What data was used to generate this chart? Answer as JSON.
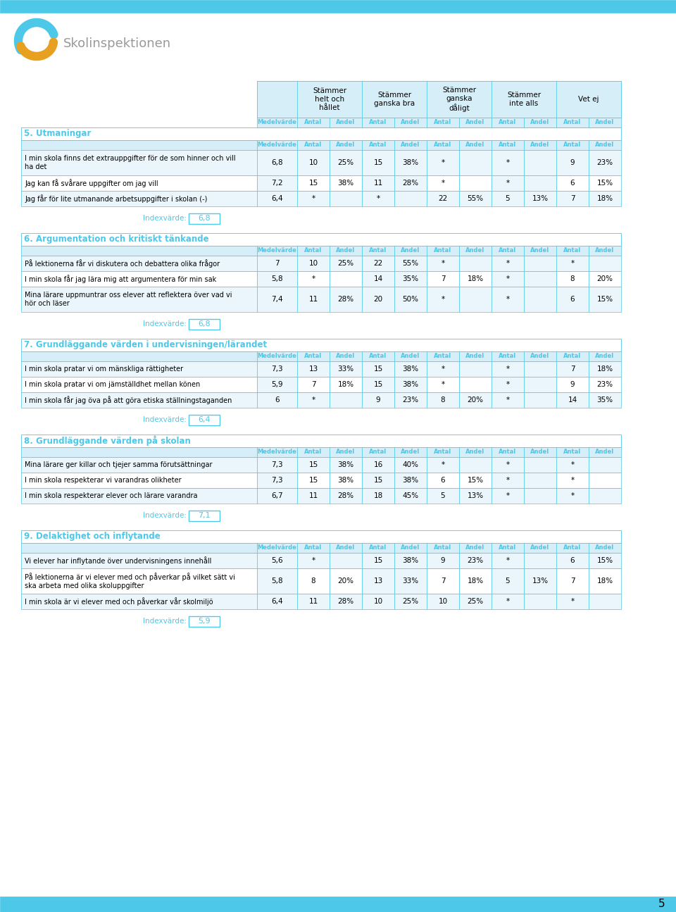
{
  "page_number": "5",
  "cyan": "#4DC8E8",
  "gold": "#E8A020",
  "col_header_bg": "#D6EEF8",
  "section_title_color": "#4DC8E8",
  "row_alt_bg": "#EBF6FC",
  "row_bg": "#FFFFFF",
  "index_box_color": "#4DC8E8",
  "index_text_color": "#4DC8E8",
  "gray_text": "#888888",
  "col_headers_top": [
    "Stämmer\nhelt och\nhållet",
    "Stämmer\nganska bra",
    "Stämmer\nganska\ndåligt",
    "Stämmer\ninte alls",
    "Vet ej"
  ],
  "col_sub_headers": [
    "Medelvärde",
    "Antal",
    "Andel",
    "Antal",
    "Andel",
    "Antal",
    "Andel",
    "Antal",
    "Andel",
    "Antal",
    "Andel"
  ],
  "sections": [
    {
      "number": "5",
      "title": "Utmaningar",
      "index_value": "6,8",
      "rows": [
        {
          "text": "I min skola finns det extrauppgifter för de som hinner och vill\nha det",
          "values": [
            "6,8",
            "10",
            "25%",
            "15",
            "38%",
            "*",
            "",
            "*",
            "",
            "9",
            "23%"
          ]
        },
        {
          "text": "Jag kan få svårare uppgifter om jag vill",
          "values": [
            "7,2",
            "15",
            "38%",
            "11",
            "28%",
            "*",
            "",
            "*",
            "",
            "6",
            "15%"
          ]
        },
        {
          "text": "Jag får för lite utmanande arbetsuppgifter i skolan (-)",
          "values": [
            "6,4",
            "*",
            "",
            "*",
            "",
            "22",
            "55%",
            "5",
            "13%",
            "7",
            "18%"
          ]
        }
      ]
    },
    {
      "number": "6",
      "title": "Argumentation och kritiskt tänkande",
      "index_value": "6,8",
      "rows": [
        {
          "text": "På lektionerna får vi diskutera och debattera olika frågor",
          "values": [
            "7",
            "10",
            "25%",
            "22",
            "55%",
            "*",
            "",
            "*",
            "",
            "*",
            ""
          ]
        },
        {
          "text": "I min skola får jag lära mig att argumentera för min sak",
          "values": [
            "5,8",
            "*",
            "",
            "14",
            "35%",
            "7",
            "18%",
            "*",
            "",
            "8",
            "20%"
          ]
        },
        {
          "text": "Mina lärare uppmuntrar oss elever att reflektera över vad vi\nhör och läser",
          "values": [
            "7,4",
            "11",
            "28%",
            "20",
            "50%",
            "*",
            "",
            "*",
            "",
            "6",
            "15%"
          ]
        }
      ]
    },
    {
      "number": "7",
      "title": "Grundläggande värden i undervisningen/lärandet",
      "index_value": "6,4",
      "rows": [
        {
          "text": "I min skola pratar vi om mänskliga rättigheter",
          "values": [
            "7,3",
            "13",
            "33%",
            "15",
            "38%",
            "*",
            "",
            "*",
            "",
            "7",
            "18%"
          ]
        },
        {
          "text": "I min skola pratar vi om jämställdhet mellan könen",
          "values": [
            "5,9",
            "7",
            "18%",
            "15",
            "38%",
            "*",
            "",
            "*",
            "",
            "9",
            "23%"
          ]
        },
        {
          "text": "I min skola får jag öva på att göra etiska ställningstaganden",
          "values": [
            "6",
            "*",
            "",
            "9",
            "23%",
            "8",
            "20%",
            "*",
            "",
            "14",
            "35%"
          ]
        }
      ]
    },
    {
      "number": "8",
      "title": "Grundläggande värden på skolan",
      "index_value": "7,1",
      "rows": [
        {
          "text": "Mina lärare ger killar och tjejer samma förutsättningar",
          "values": [
            "7,3",
            "15",
            "38%",
            "16",
            "40%",
            "*",
            "",
            "*",
            "",
            "*",
            ""
          ]
        },
        {
          "text": "I min skola respekterar vi varandras olikheter",
          "values": [
            "7,3",
            "15",
            "38%",
            "15",
            "38%",
            "6",
            "15%",
            "*",
            "",
            "*",
            ""
          ]
        },
        {
          "text": "I min skola respekterar elever och lärare varandra",
          "values": [
            "6,7",
            "11",
            "28%",
            "18",
            "45%",
            "5",
            "13%",
            "*",
            "",
            "*",
            ""
          ]
        }
      ]
    },
    {
      "number": "9",
      "title": "Delaktighet och inflytande",
      "index_value": "5,9",
      "rows": [
        {
          "text": "Vi elever har inflytande över undervisningens innehåll",
          "values": [
            "5,6",
            "*",
            "",
            "15",
            "38%",
            "9",
            "23%",
            "*",
            "",
            "6",
            "15%"
          ]
        },
        {
          "text": "På lektionerna är vi elever med och påverkar på vilket sätt vi\nska arbeta med olika skoluppgifter",
          "values": [
            "5,8",
            "8",
            "20%",
            "13",
            "33%",
            "7",
            "18%",
            "5",
            "13%",
            "7",
            "18%"
          ]
        },
        {
          "text": "I min skola är vi elever med och påverkar vår skolmiljö",
          "values": [
            "6,4",
            "11",
            "28%",
            "10",
            "25%",
            "10",
            "25%",
            "*",
            "",
            "*",
            ""
          ]
        }
      ]
    }
  ]
}
